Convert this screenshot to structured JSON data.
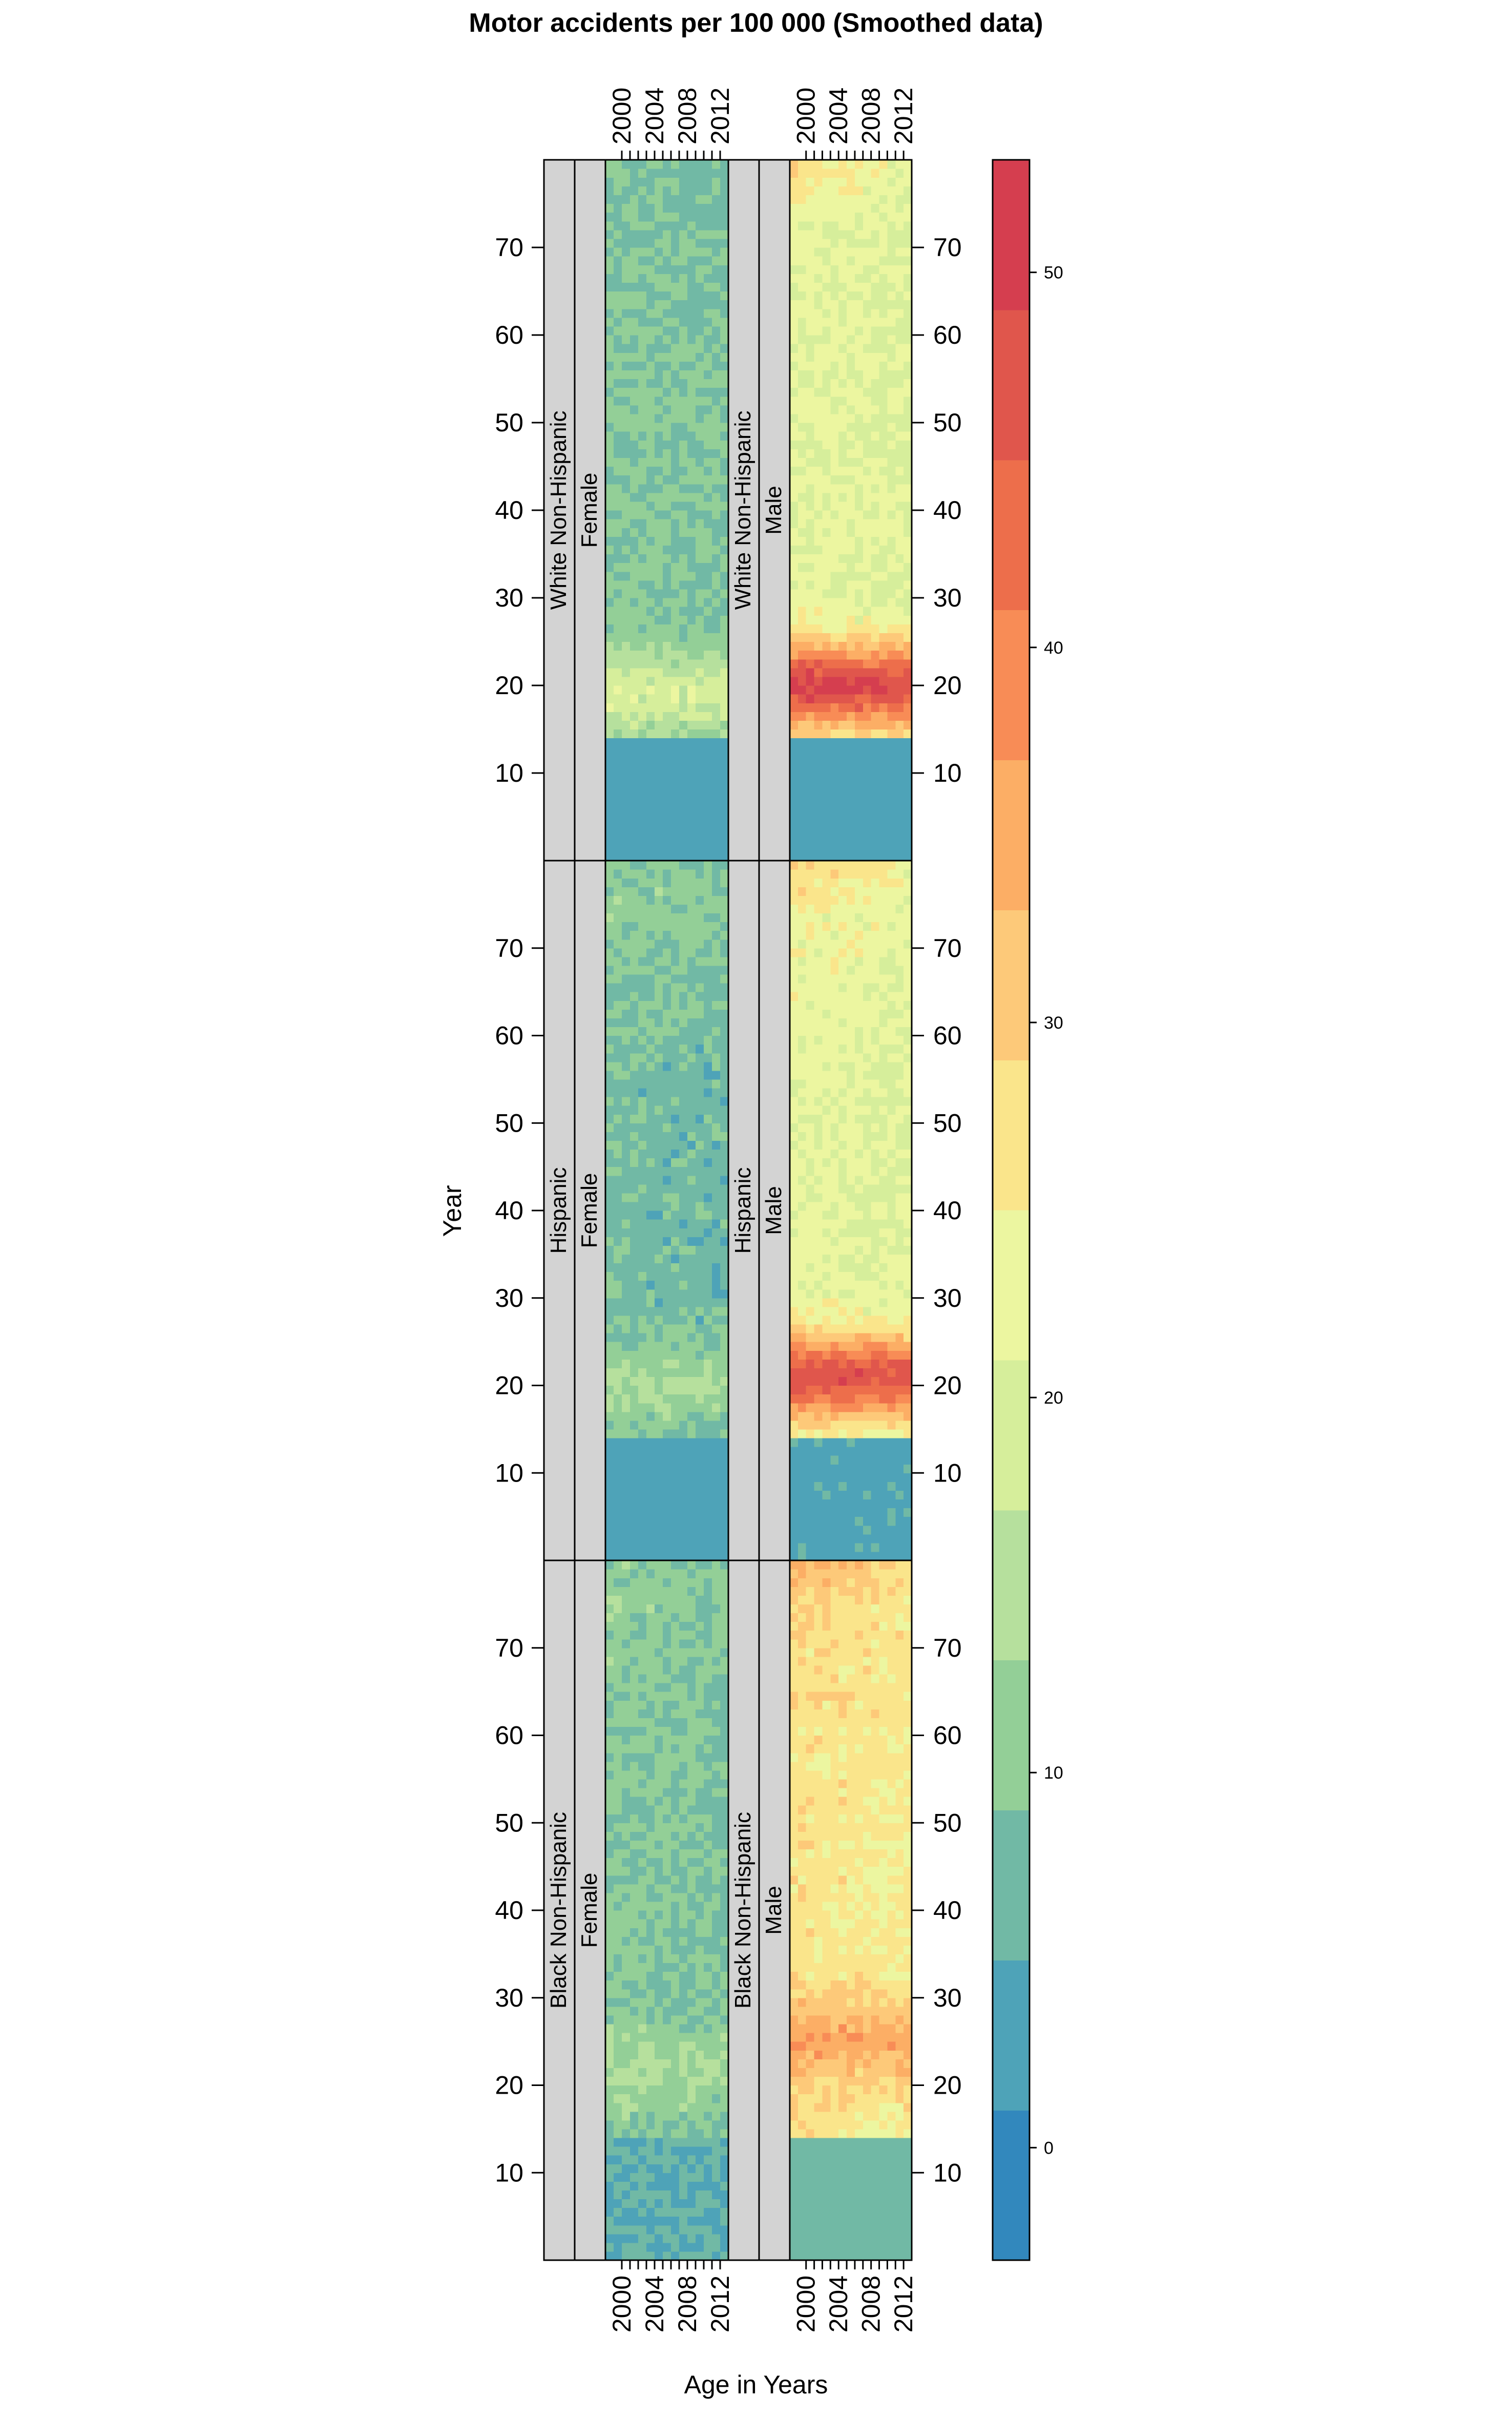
{
  "chart_data": {
    "type": "heatmap",
    "title": "Motor accidents per 100 000 (Smoothed data)",
    "xlabel": "Age in Years",
    "ylabel": "Year",
    "x_ticks": [
      "2000",
      "2004",
      "2008",
      "2012"
    ],
    "y_ticks": [
      "10",
      "20",
      "30",
      "40",
      "50",
      "60",
      "70"
    ],
    "xlim": [
      1998,
      2013
    ],
    "ylim": [
      0,
      80
    ],
    "panels": [
      {
        "race": "White Non-Hispanic",
        "sex": "Female",
        "peak_value": 20,
        "peak_center": 19,
        "body_value": 10,
        "upper_value": 9,
        "child_value": 3
      },
      {
        "race": "White Non-Hispanic",
        "sex": "Male",
        "peak_value": 50,
        "peak_center": 20,
        "body_value": 22,
        "upper_value": 22,
        "child_value": 3
      },
      {
        "race": "Hispanic",
        "sex": "Female",
        "peak_value": 14,
        "peak_center": 20,
        "body_value": 8,
        "upper_value": 11,
        "child_value": 3
      },
      {
        "race": "Hispanic",
        "sex": "Male",
        "peak_value": 48,
        "peak_center": 21,
        "body_value": 22,
        "upper_value": 24,
        "child_value": 4
      },
      {
        "race": "Black Non-Hispanic",
        "sex": "Female",
        "peak_value": 14,
        "peak_center": 22,
        "body_value": 10,
        "upper_value": 11,
        "child_value": 5
      },
      {
        "race": "Black Non-Hispanic",
        "sex": "Male",
        "peak_value": 36,
        "peak_center": 25,
        "body_value": 27,
        "upper_value": 28,
        "child_value": 7
      }
    ],
    "colorbar": {
      "ticks": [
        "0",
        "10",
        "20",
        "30",
        "40",
        "50"
      ],
      "range": [
        -3,
        53
      ],
      "colors": [
        "#3288bd",
        "#4ea3b8",
        "#71b9a5",
        "#93cf97",
        "#b6e09d",
        "#d6ee9b",
        "#ecf6a0",
        "#fae58b",
        "#fdc979",
        "#fcae65",
        "#f88c56",
        "#ed6e4b",
        "#e0564c",
        "#d53e4f"
      ]
    }
  }
}
